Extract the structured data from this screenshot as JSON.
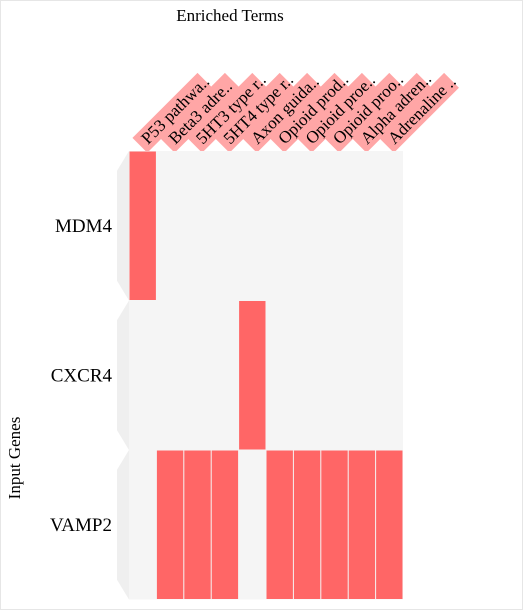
{
  "chart_data": {
    "type": "heatmap",
    "title": "Enriched Terms",
    "ylabel": "Input Genes",
    "columns": [
      "P53 pathwa..",
      "Beta3 adre..",
      "5HT3 type r..",
      "5HT4 type r..",
      "Axon guida..",
      "Opioid prod..",
      "Opioid proe..",
      "Opioid proo..",
      "Alpha adren..",
      "Adrenaline .."
    ],
    "rows": [
      "MDM4",
      "CXCR4",
      "VAMP2"
    ],
    "values": [
      [
        1,
        0,
        0,
        0,
        0,
        0,
        0,
        0,
        0,
        0
      ],
      [
        0,
        0,
        0,
        0,
        1,
        0,
        0,
        0,
        0,
        0
      ],
      [
        0,
        1,
        1,
        1,
        0,
        1,
        1,
        1,
        1,
        1
      ]
    ],
    "colors": {
      "hit": "#ff6666",
      "empty": "#f5f5f5",
      "label_bg": "#ffa6a6",
      "wedge": "#e8e8e8"
    }
  }
}
